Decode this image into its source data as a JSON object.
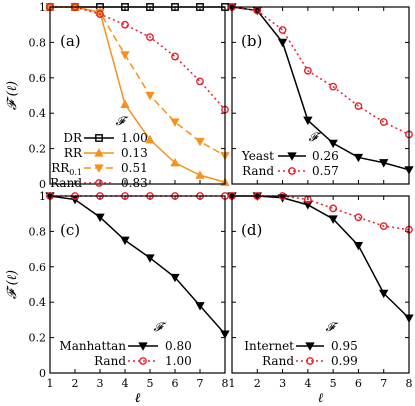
{
  "chart_data": [
    {
      "type": "line",
      "panel_label": "(a)",
      "x": [
        1,
        2,
        3,
        4,
        5,
        6,
        7,
        8
      ],
      "xlim": [
        1,
        8
      ],
      "ylim": [
        0,
        1
      ],
      "xticks": [
        "1",
        "2",
        "3",
        "4",
        "5",
        "6",
        "7",
        "8"
      ],
      "yticks": [
        "0",
        "0.2",
        "0.4",
        "0.6",
        "0.8",
        "1"
      ],
      "ylabel": "𝓕 (ℓ)",
      "xlabel": "ℓ",
      "legend_header": "𝓕",
      "legend_position": "bottom-left",
      "series": [
        {
          "name": "DR",
          "legend_value": "1.00",
          "color": "#000000",
          "marker": "square",
          "dash": "solid",
          "values": [
            1,
            1,
            1,
            1,
            1,
            1,
            1,
            1
          ]
        },
        {
          "name": "RR",
          "legend_value": "0.13",
          "color": "#f5921e",
          "marker": "triangle-up",
          "dash": "solid",
          "values": [
            1,
            1,
            0.97,
            0.45,
            0.25,
            0.12,
            0.05,
            0.01
          ]
        },
        {
          "name": "RR0.1",
          "legend_value": "0.51",
          "color": "#f5921e",
          "marker": "triangle-down",
          "dash": "dashed",
          "values": [
            1,
            1,
            0.97,
            0.73,
            0.5,
            0.35,
            0.24,
            0.16
          ]
        },
        {
          "name": "Rand",
          "legend_value": "0.83",
          "color": "#e8202a",
          "marker": "circle",
          "dash": "dotted",
          "values": [
            1,
            1,
            0.96,
            0.9,
            0.83,
            0.72,
            0.58,
            0.42
          ]
        }
      ]
    },
    {
      "type": "line",
      "panel_label": "(b)",
      "x": [
        1,
        2,
        3,
        4,
        5,
        6,
        7,
        8
      ],
      "xlim": [
        1,
        8
      ],
      "ylim": [
        0,
        1
      ],
      "xticks": [
        "1",
        "2",
        "3",
        "4",
        "5",
        "6",
        "7",
        "8"
      ],
      "yticks": [
        "0",
        "0.2",
        "0.4",
        "0.6",
        "0.8",
        "1"
      ],
      "legend_header": "𝓕",
      "legend_position": "bottom-left",
      "series": [
        {
          "name": "Yeast",
          "legend_value": "0.26",
          "color": "#000000",
          "marker": "triangle-down",
          "dash": "solid",
          "values": [
            1,
            0.98,
            0.8,
            0.36,
            0.23,
            0.15,
            0.12,
            0.08
          ]
        },
        {
          "name": "Rand",
          "legend_value": "0.57",
          "color": "#e8202a",
          "marker": "circle",
          "dash": "dotted",
          "values": [
            1,
            0.98,
            0.87,
            0.64,
            0.55,
            0.44,
            0.35,
            0.28
          ]
        }
      ]
    },
    {
      "type": "line",
      "panel_label": "(c)",
      "x": [
        1,
        2,
        3,
        4,
        5,
        6,
        7,
        8
      ],
      "xlim": [
        1,
        8
      ],
      "ylim": [
        0,
        1
      ],
      "xticks": [
        "1",
        "2",
        "3",
        "4",
        "5",
        "6",
        "7",
        "8"
      ],
      "yticks": [
        "0",
        "0.2",
        "0.4",
        "0.6",
        "0.8",
        "1"
      ],
      "ylabel": "𝓕 (ℓ)",
      "xlabel": "ℓ",
      "legend_header": "𝓕",
      "legend_position": "bottom-left",
      "series": [
        {
          "name": "Manhattan",
          "legend_value": "0.80",
          "color": "#000000",
          "marker": "triangle-down",
          "dash": "solid",
          "values": [
            1,
            0.98,
            0.88,
            0.75,
            0.65,
            0.54,
            0.38,
            0.22
          ]
        },
        {
          "name": "Rand",
          "legend_value": "1.00",
          "color": "#e8202a",
          "marker": "circle",
          "dash": "dotted",
          "values": [
            1,
            1,
            1,
            1,
            1,
            1,
            1,
            1
          ]
        }
      ]
    },
    {
      "type": "line",
      "panel_label": "(d)",
      "x": [
        1,
        2,
        3,
        4,
        5,
        6,
        7,
        8
      ],
      "xlim": [
        1,
        8
      ],
      "ylim": [
        0,
        1
      ],
      "xticks": [
        "1",
        "2",
        "3",
        "4",
        "5",
        "6",
        "7",
        "8"
      ],
      "yticks": [
        "0",
        "0.2",
        "0.4",
        "0.6",
        "0.8",
        "1"
      ],
      "xlabel": "ℓ",
      "legend_header": "𝓕",
      "legend_position": "bottom-left",
      "series": [
        {
          "name": "Internet",
          "legend_value": "0.95",
          "color": "#000000",
          "marker": "triangle-down",
          "dash": "solid",
          "values": [
            1,
            1,
            0.99,
            0.95,
            0.87,
            0.72,
            0.45,
            0.31
          ]
        },
        {
          "name": "Rand",
          "legend_value": "0.99",
          "color": "#e8202a",
          "marker": "circle",
          "dash": "dotted",
          "values": [
            1,
            1,
            1,
            0.98,
            0.93,
            0.88,
            0.83,
            0.81
          ]
        }
      ]
    }
  ]
}
